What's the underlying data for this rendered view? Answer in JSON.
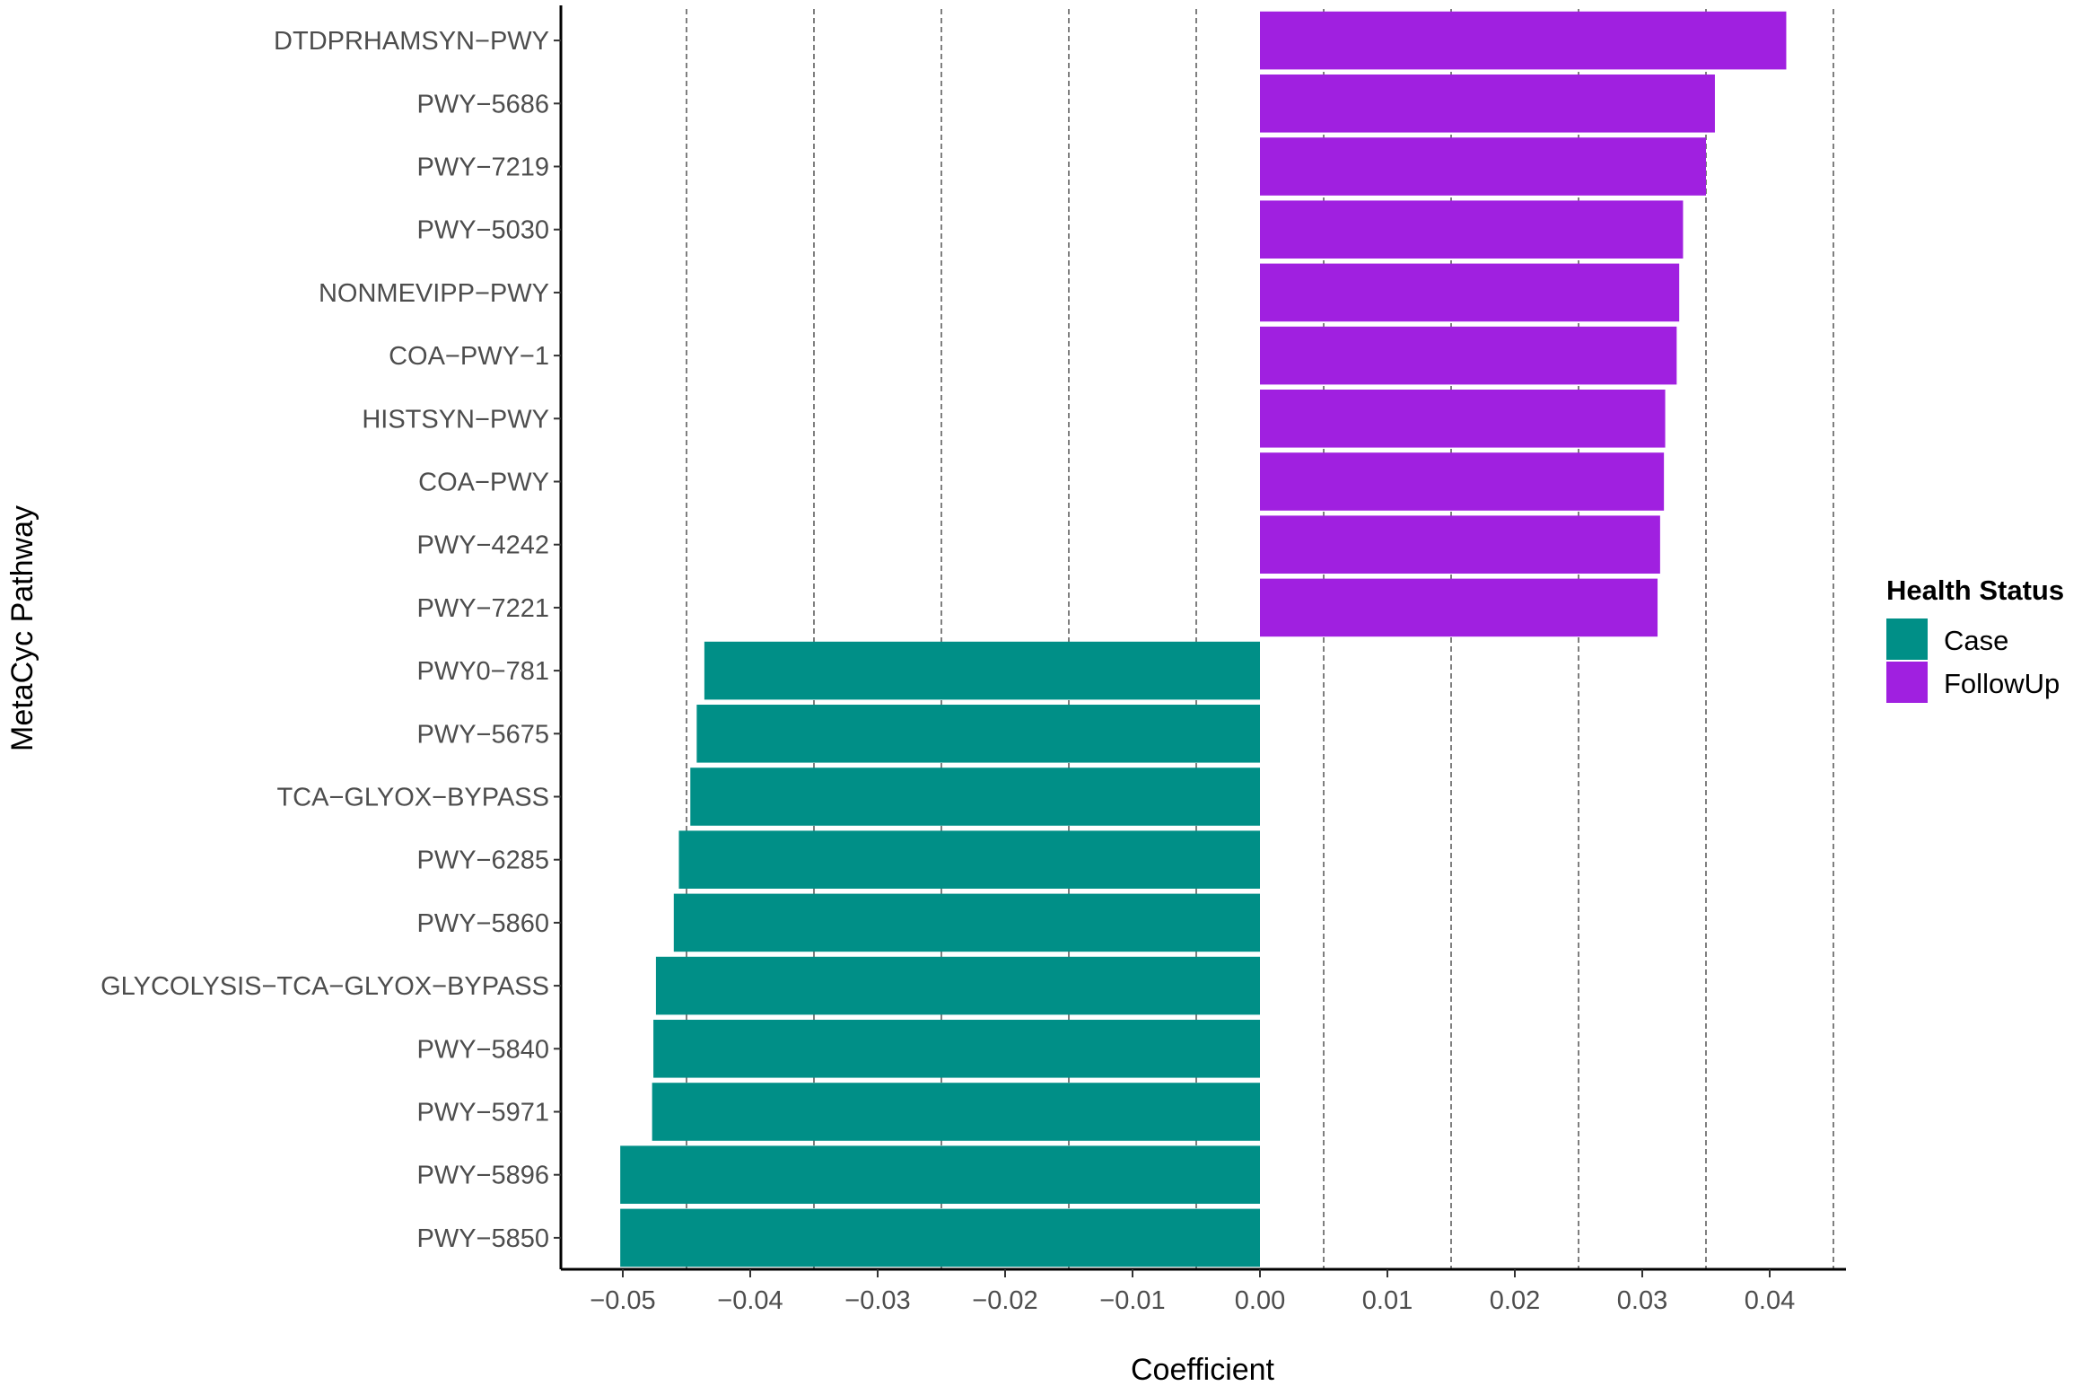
{
  "chart_data": {
    "type": "bar",
    "orientation": "horizontal",
    "xlabel": "Coefficient",
    "ylabel": "MetaCyc Pathway",
    "xlim": [
      -0.055,
      0.046
    ],
    "xticks": [
      -0.05,
      -0.04,
      -0.03,
      -0.02,
      -0.01,
      0.0,
      0.01,
      0.02,
      0.03,
      0.04
    ],
    "xtick_labels": [
      "−0.05",
      "−0.04",
      "−0.03",
      "−0.02",
      "−0.01",
      "0.00",
      "0.01",
      "0.02",
      "0.03",
      "0.04"
    ],
    "minor_gridlines_dashed": [
      -0.045,
      -0.035,
      -0.025,
      -0.015,
      -0.005,
      0.005,
      0.015,
      0.025,
      0.035,
      0.045
    ],
    "legend": {
      "title": "Health Status",
      "position": "right",
      "entries": [
        {
          "label": "Case",
          "color": "#008f87"
        },
        {
          "label": "FollowUp",
          "color": "#a020e0"
        }
      ]
    },
    "categories": [
      "DTDPRHAMSYN−PWY",
      "PWY−5686",
      "PWY−7219",
      "PWY−5030",
      "NONMEVIPP−PWY",
      "COA−PWY−1",
      "HISTSYN−PWY",
      "COA−PWY",
      "PWY−4242",
      "PWY−7221",
      "PWY0−781",
      "PWY−5675",
      "TCA−GLYOX−BYPASS",
      "PWY−6285",
      "PWY−5860",
      "GLYCOLYSIS−TCA−GLYOX−BYPASS",
      "PWY−5840",
      "PWY−5971",
      "PWY−5896",
      "PWY−5850"
    ],
    "values": [
      0.0413,
      0.0357,
      0.035,
      0.0332,
      0.0329,
      0.0327,
      0.0318,
      0.0317,
      0.0314,
      0.0312,
      -0.0436,
      -0.0442,
      -0.0447,
      -0.0456,
      -0.046,
      -0.0474,
      -0.0476,
      -0.0477,
      -0.0502,
      -0.0502
    ],
    "groups": [
      "FollowUp",
      "FollowUp",
      "FollowUp",
      "FollowUp",
      "FollowUp",
      "FollowUp",
      "FollowUp",
      "FollowUp",
      "FollowUp",
      "FollowUp",
      "Case",
      "Case",
      "Case",
      "Case",
      "Case",
      "Case",
      "Case",
      "Case",
      "Case",
      "Case"
    ]
  }
}
